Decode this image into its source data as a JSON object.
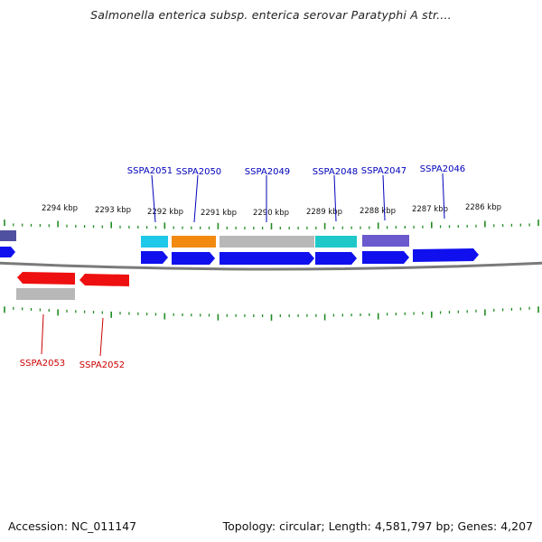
{
  "title": "Salmonella enterica subsp. enterica serovar Paratyphi A str....",
  "footer": {
    "accession": "Accession: NC_011147",
    "summary": "Topology: circular; Length: 4,581,797 bp; Genes: 4,207"
  },
  "colors": {
    "cds_forward": "#1010ee",
    "cds_reverse": "#ee1010",
    "label_forward": "#0000bb",
    "label_reverse": "#cc0000",
    "cyan": "#1ec8e8",
    "orange": "#f28a10",
    "grey": "#b8b8b8",
    "teal": "#1ec8c8",
    "slate": "#6a5acd",
    "tick": "#228b22",
    "backbone": "#7a7a7a"
  },
  "chart_data": {
    "type": "genome-map",
    "scale_labels": [
      "2294 kbp",
      "2293 kbp",
      "2292 kbp",
      "2291 kbp",
      "2290 kbp",
      "2289 kbp",
      "2288 kbp",
      "2287 kbp",
      "2286 kbp"
    ],
    "forward_genes": [
      "SSPA2051",
      "SSPA2050",
      "SSPA2049",
      "SSPA2048",
      "SSPA2047",
      "SSPA2046"
    ],
    "reverse_genes": [
      "SSPA2053",
      "SSPA2052"
    ]
  }
}
